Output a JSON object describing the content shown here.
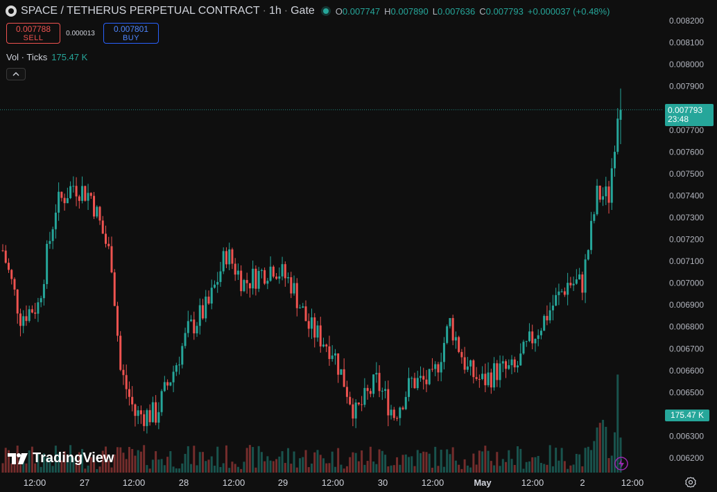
{
  "header": {
    "symbol_title": "SPACE / TETHERUS PERPETUAL CONTRACT",
    "interval": "1h",
    "exchange": "Gate",
    "separator": "·",
    "ohlc": {
      "o_label": "O",
      "o": "0.007747",
      "h_label": "H",
      "h": "0.007890",
      "l_label": "L",
      "l": "0.007636",
      "c_label": "C",
      "c": "0.007793",
      "change": "+0.000037 (+0.48%)"
    }
  },
  "trade": {
    "sell_price": "0.007788",
    "sell_label": "SELL",
    "spread": "0.000013",
    "buy_price": "0.007801",
    "buy_label": "BUY"
  },
  "volume_legend": {
    "name": "Vol · Ticks",
    "value": "175.47 K"
  },
  "price_label": {
    "price": "0.007793",
    "countdown": "23:48"
  },
  "volume_label": "175.47 K",
  "branding": "TradingView",
  "colors": {
    "up": "#26a69a",
    "down": "#ef5350",
    "background": "#0f0f0f"
  },
  "icons": {
    "settings": "gear-icon",
    "collapse": "chevron-up-icon",
    "replay": "lightning-icon"
  },
  "chart_data": {
    "type": "candlestick",
    "interval": "1h",
    "y_ticks": [
      "0.008200",
      "0.008100",
      "0.008000",
      "0.007900",
      "0.007700",
      "0.007600",
      "0.007500",
      "0.007400",
      "0.007300",
      "0.007200",
      "0.007100",
      "0.007000",
      "0.006900",
      "0.006800",
      "0.006700",
      "0.006600",
      "0.006500",
      "0.006300",
      "0.006200"
    ],
    "ylim": [
      0.00615,
      0.00822
    ],
    "x_ticks": [
      "12:00",
      "27",
      "12:00",
      "28",
      "12:00",
      "29",
      "12:00",
      "30",
      "12:00",
      "May",
      "12:00",
      "2",
      "12:00"
    ],
    "volume_max_k": 180,
    "last_close": 0.007793
  }
}
